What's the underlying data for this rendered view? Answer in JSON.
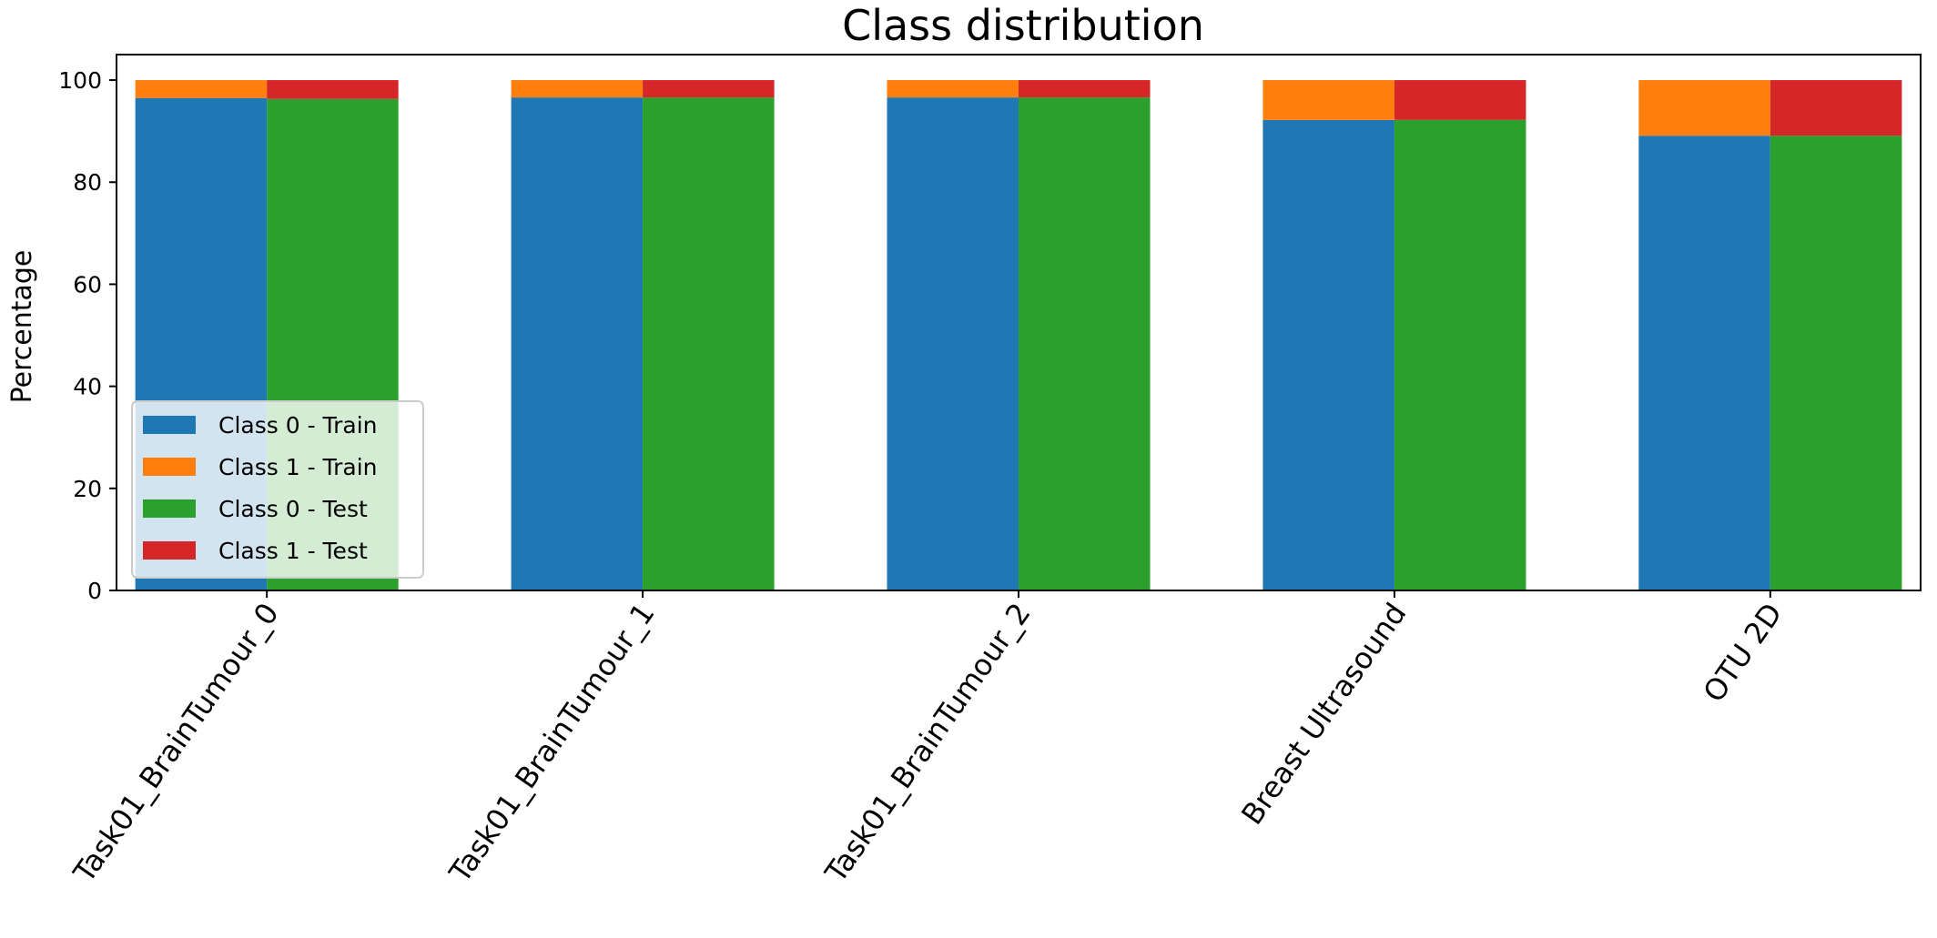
{
  "chart_data": {
    "type": "bar",
    "stacked": true,
    "grouped": true,
    "title": "Class distribution",
    "xlabel": "",
    "ylabel": "Percentage",
    "ylim": [
      0,
      105
    ],
    "yticks": [
      0,
      20,
      40,
      60,
      80,
      100
    ],
    "categories": [
      "Task01_BrainTumour_0",
      "Task01_BrainTumour_1",
      "Task01_BrainTumour_2",
      "Breast Ultrasound",
      "OTU 2D"
    ],
    "series": [
      {
        "name": "Class 0 - Train",
        "group": "train",
        "color": "#1f77b4",
        "values": [
          96.5,
          96.6,
          96.6,
          92.2,
          89.1
        ]
      },
      {
        "name": "Class 1 - Train",
        "group": "train",
        "color": "#ff7f0e",
        "values": [
          3.5,
          3.4,
          3.4,
          7.8,
          10.9
        ]
      },
      {
        "name": "Class 0 - Test",
        "group": "test",
        "color": "#2ca02c",
        "values": [
          96.3,
          96.6,
          96.6,
          92.2,
          89.1
        ]
      },
      {
        "name": "Class 1 - Test",
        "group": "test",
        "color": "#d62728",
        "values": [
          3.7,
          3.4,
          3.4,
          7.8,
          10.9
        ]
      }
    ],
    "legend": {
      "placement": "lower-left"
    },
    "grid": false
  }
}
